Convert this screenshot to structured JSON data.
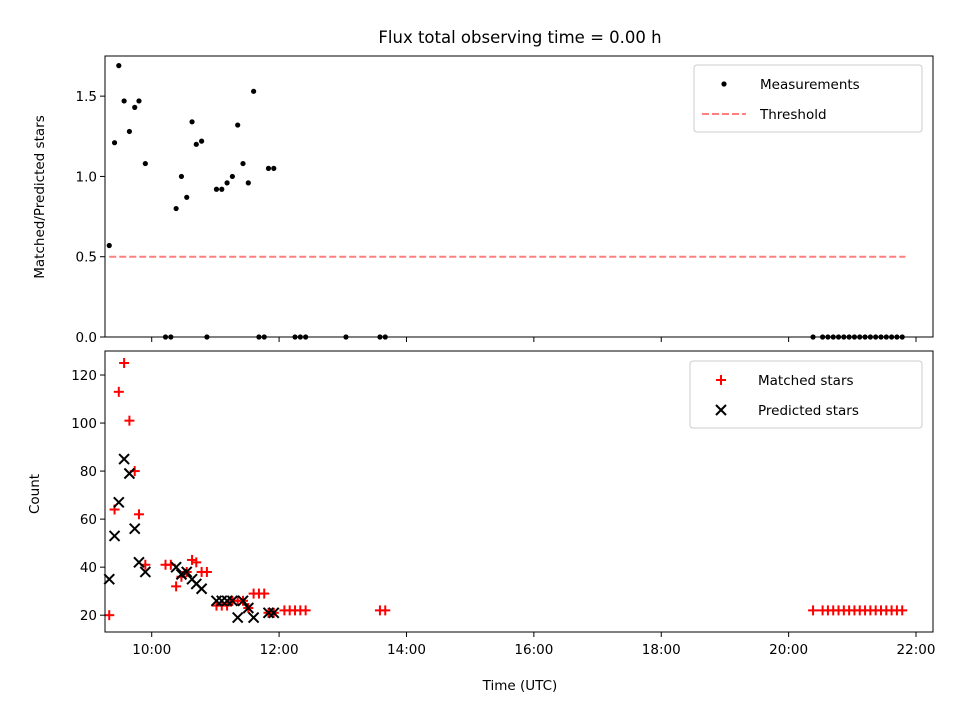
{
  "chart_data": [
    {
      "type": "scatter",
      "title": "Flux total observing time = 0.00 h",
      "xlabel": "",
      "ylabel": "Matched/Predicted stars",
      "xlim": [
        "09:16",
        "22:16"
      ],
      "ylim": [
        0,
        1.75
      ],
      "yticks": [
        "0.0",
        "0.5",
        "1.0",
        "1.5"
      ],
      "legend_position": "top-right",
      "grid": false,
      "series": [
        {
          "name": "Measurements",
          "kind": "scatter",
          "marker": "dot",
          "color": "#000000",
          "x": [
            "09:20",
            "09:25",
            "09:29",
            "09:34",
            "09:39",
            "09:44",
            "09:48",
            "09:54",
            "10:13",
            "10:18",
            "10:23",
            "10:28",
            "10:33",
            "10:38",
            "10:42",
            "10:47",
            "10:52",
            "11:01",
            "11:06",
            "11:11",
            "11:16",
            "11:21",
            "11:26",
            "11:31",
            "11:36",
            "11:41",
            "11:46",
            "11:50",
            "11:55",
            "12:15",
            "12:20",
            "12:25",
            "13:03",
            "13:35",
            "13:40",
            "20:23",
            "20:32",
            "20:37",
            "20:42",
            "20:47",
            "20:52",
            "20:57",
            "21:02",
            "21:07",
            "21:12",
            "21:17",
            "21:22",
            "21:27",
            "21:32",
            "21:37",
            "21:42",
            "21:47"
          ],
          "y": [
            0.57,
            1.21,
            1.69,
            1.47,
            1.28,
            1.43,
            1.47,
            1.08,
            0,
            0,
            0.8,
            1.0,
            0.87,
            1.34,
            1.2,
            1.22,
            0,
            0.92,
            0.92,
            0.96,
            1.0,
            1.32,
            1.08,
            0.96,
            1.53,
            0,
            0,
            1.05,
            1.05,
            0,
            0,
            0,
            0,
            0,
            0,
            0,
            0,
            0,
            0,
            0,
            0,
            0,
            0,
            0,
            0,
            0,
            0,
            0,
            0,
            0,
            0,
            0
          ]
        },
        {
          "name": "Threshold",
          "kind": "line",
          "dashed": true,
          "color": "#ff7f7f",
          "x": [
            "09:20",
            "21:50"
          ],
          "y": [
            0.5,
            0.5
          ]
        }
      ]
    },
    {
      "type": "scatter",
      "title": "",
      "xlabel": "Time (UTC)",
      "ylabel": "Count",
      "xlim": [
        "09:16",
        "22:16"
      ],
      "ylim": [
        13,
        130
      ],
      "xticks": [
        "10:00",
        "12:00",
        "14:00",
        "16:00",
        "18:00",
        "20:00",
        "22:00"
      ],
      "yticks": [
        "20",
        "40",
        "60",
        "80",
        "100",
        "120"
      ],
      "legend_position": "top-right",
      "grid": false,
      "series": [
        {
          "name": "Matched stars",
          "kind": "scatter",
          "marker": "plus",
          "color": "#ff0000",
          "x": [
            "09:20",
            "09:25",
            "09:29",
            "09:34",
            "09:39",
            "09:44",
            "09:48",
            "09:54",
            "10:13",
            "10:18",
            "10:23",
            "10:28",
            "10:33",
            "10:38",
            "10:42",
            "10:47",
            "10:52",
            "11:01",
            "11:06",
            "11:11",
            "11:16",
            "11:21",
            "11:26",
            "11:31",
            "11:36",
            "11:41",
            "11:46",
            "11:50",
            "11:55",
            "12:05",
            "12:10",
            "12:15",
            "12:20",
            "12:25",
            "13:35",
            "13:40",
            "20:23",
            "20:32",
            "20:37",
            "20:42",
            "20:47",
            "20:52",
            "20:57",
            "21:02",
            "21:07",
            "21:12",
            "21:17",
            "21:22",
            "21:27",
            "21:32",
            "21:37",
            "21:42",
            "21:47"
          ],
          "y": [
            20,
            64,
            113,
            125,
            101,
            80,
            62,
            41,
            41,
            41,
            32,
            36,
            38,
            43,
            42,
            38,
            38,
            24,
            24,
            24,
            26,
            26,
            26,
            23,
            29,
            29,
            29,
            21,
            21,
            22,
            22,
            22,
            22,
            22,
            22,
            22,
            22,
            22,
            22,
            22,
            22,
            22,
            22,
            22,
            22,
            22,
            22,
            22,
            22,
            22,
            22,
            22,
            22
          ]
        },
        {
          "name": "Predicted stars",
          "kind": "scatter",
          "marker": "x",
          "color": "#000000",
          "x": [
            "09:20",
            "09:25",
            "09:29",
            "09:34",
            "09:39",
            "09:44",
            "09:48",
            "09:54",
            "10:23",
            "10:28",
            "10:33",
            "10:38",
            "10:42",
            "10:47",
            "11:01",
            "11:06",
            "11:11",
            "11:16",
            "11:21",
            "11:26",
            "11:31",
            "11:36",
            "11:50",
            "11:55"
          ],
          "y": [
            35,
            53,
            67,
            85,
            79,
            56,
            42,
            38,
            40,
            37,
            38,
            35,
            33,
            31,
            26,
            26,
            26,
            26,
            19,
            26,
            23,
            19,
            21,
            21
          ]
        }
      ]
    }
  ]
}
